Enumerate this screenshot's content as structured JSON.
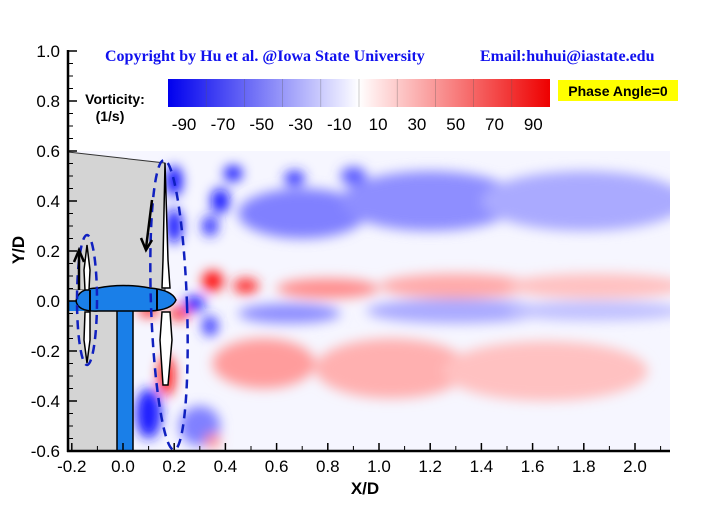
{
  "chart_data": {
    "type": "heatmap",
    "title": "",
    "copyright": "Copyright by Hu et al. @Iowa State University",
    "email": "Email:huhui@iastate.edu",
    "xlabel": "X/D",
    "ylabel": "Y/D",
    "xlim": [
      -0.215,
      2.17
    ],
    "ylim": [
      -0.6,
      1.0
    ],
    "xticks": [
      "-0.2",
      "0.0",
      "0.2",
      "0.4",
      "0.6",
      "0.8",
      "1.0",
      "1.2",
      "1.4",
      "1.6",
      "1.8",
      "2.0"
    ],
    "xtick_values": [
      -0.2,
      0,
      0.2,
      0.4,
      0.6,
      0.8,
      1.0,
      1.2,
      1.4,
      1.6,
      1.8,
      2.0
    ],
    "yticks": [
      "-0.6",
      "-0.4",
      "-0.2",
      "0.0",
      "0.2",
      "0.4",
      "0.6",
      "0.8",
      "1.0"
    ],
    "ytick_values": [
      -0.6,
      -0.4,
      -0.2,
      0,
      0.2,
      0.4,
      0.6,
      0.8,
      1.0
    ],
    "field_ylim": [
      -0.6,
      0.6
    ],
    "colorbar": {
      "title": "Vorticity:",
      "units": "(1/s)",
      "range": [
        -90,
        90
      ],
      "ticks": [
        "-90",
        "-70",
        "-50",
        "-30",
        "-10",
        "10",
        "30",
        "50",
        "70",
        "90"
      ],
      "colors": {
        "negative": "#0000ff",
        "zero": "#ffffff",
        "positive": "#ff0000"
      }
    },
    "annotation": "Phase Angle=0",
    "annotation_color": "#ffff00",
    "turbine_color": "#1a7fe8",
    "vortex_features": [
      {
        "x": 0.2,
        "y": 0.48,
        "w": -90,
        "rx": 0.03,
        "ry": 0.06
      },
      {
        "x": 0.2,
        "y": 0.3,
        "w": -85,
        "rx": 0.03,
        "ry": 0.07
      },
      {
        "x": 0.43,
        "y": 0.51,
        "w": -90,
        "rx": 0.035,
        "ry": 0.03
      },
      {
        "x": 0.67,
        "y": 0.49,
        "w": -75,
        "rx": 0.04,
        "ry": 0.03
      },
      {
        "x": 0.9,
        "y": 0.5,
        "w": -60,
        "rx": 0.05,
        "ry": 0.035
      },
      {
        "x": 0.38,
        "y": 0.4,
        "w": -85,
        "rx": 0.035,
        "ry": 0.05
      },
      {
        "x": 0.34,
        "y": 0.3,
        "w": -75,
        "rx": 0.03,
        "ry": 0.04
      },
      {
        "x": 0.7,
        "y": 0.35,
        "w": -45,
        "rx": 0.25,
        "ry": 0.1
      },
      {
        "x": 1.2,
        "y": 0.4,
        "w": -40,
        "rx": 0.35,
        "ry": 0.12
      },
      {
        "x": 1.8,
        "y": 0.4,
        "w": -30,
        "rx": 0.4,
        "ry": 0.12
      },
      {
        "x": 0.35,
        "y": 0.08,
        "w": 90,
        "rx": 0.04,
        "ry": 0.04
      },
      {
        "x": 0.48,
        "y": 0.06,
        "w": 75,
        "rx": 0.05,
        "ry": 0.03
      },
      {
        "x": 0.8,
        "y": 0.05,
        "w": 40,
        "rx": 0.2,
        "ry": 0.04
      },
      {
        "x": 1.3,
        "y": 0.06,
        "w": 30,
        "rx": 0.3,
        "ry": 0.05
      },
      {
        "x": 1.85,
        "y": 0.06,
        "w": 22,
        "rx": 0.35,
        "ry": 0.05
      },
      {
        "x": 0.28,
        "y": -0.01,
        "w": -85,
        "rx": 0.04,
        "ry": 0.03
      },
      {
        "x": 0.34,
        "y": -0.1,
        "w": -70,
        "rx": 0.03,
        "ry": 0.04
      },
      {
        "x": 0.65,
        "y": -0.05,
        "w": -40,
        "rx": 0.2,
        "ry": 0.04
      },
      {
        "x": 1.3,
        "y": -0.04,
        "w": -30,
        "rx": 0.35,
        "ry": 0.05
      },
      {
        "x": 1.85,
        "y": -0.04,
        "w": -22,
        "rx": 0.35,
        "ry": 0.04
      },
      {
        "x": 0.1,
        "y": -0.04,
        "w": 90,
        "rx": 0.04,
        "ry": 0.02
      },
      {
        "x": 0.22,
        "y": -0.05,
        "w": 80,
        "rx": 0.04,
        "ry": 0.025
      },
      {
        "x": 0.17,
        "y": -0.3,
        "w": 85,
        "rx": 0.03,
        "ry": 0.08
      },
      {
        "x": 0.55,
        "y": -0.25,
        "w": 35,
        "rx": 0.2,
        "ry": 0.1
      },
      {
        "x": 1.05,
        "y": -0.27,
        "w": 28,
        "rx": 0.3,
        "ry": 0.12
      },
      {
        "x": 1.65,
        "y": -0.28,
        "w": 22,
        "rx": 0.4,
        "ry": 0.12
      },
      {
        "x": 0.1,
        "y": -0.45,
        "w": -80,
        "rx": 0.05,
        "ry": 0.1
      },
      {
        "x": 0.3,
        "y": -0.5,
        "w": -45,
        "rx": 0.08,
        "ry": 0.08
      },
      {
        "x": 0.35,
        "y": -0.56,
        "w": 40,
        "rx": 0.03,
        "ry": 0.03
      }
    ]
  }
}
